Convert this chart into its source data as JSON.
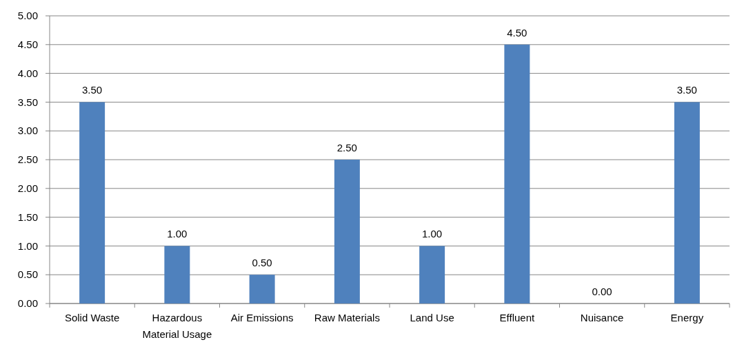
{
  "chart_data": {
    "type": "bar",
    "categories": [
      "Solid Waste",
      "Hazardous Material Usage",
      "Air Emissions",
      "Raw Materials",
      "Land Use",
      "Effluent",
      "Nuisance",
      "Energy"
    ],
    "values": [
      3.5,
      1,
      0.5,
      2.5,
      1,
      4.5,
      0,
      3.5
    ],
    "value_labels": [
      "3.50",
      "1.00",
      "0.50",
      "2.50",
      "1.00",
      "4.50",
      "0.00",
      "3.50"
    ],
    "color": "#4f81bd",
    "ylim": [
      0,
      5
    ],
    "yticks": [
      {
        "value": 0,
        "label": "0.00"
      },
      {
        "value": 0.5,
        "label": "0.50"
      },
      {
        "value": 1,
        "label": "1.00"
      },
      {
        "value": 1.5,
        "label": "1.50"
      },
      {
        "value": 2,
        "label": "2.00"
      },
      {
        "value": 2.5,
        "label": "2.50"
      },
      {
        "value": 3,
        "label": "3.00"
      },
      {
        "value": 3.5,
        "label": "3.50"
      },
      {
        "value": 4,
        "label": "4.00"
      },
      {
        "value": 4.5,
        "label": "4.50"
      },
      {
        "value": 5,
        "label": "5.00"
      }
    ],
    "grid": "y"
  }
}
